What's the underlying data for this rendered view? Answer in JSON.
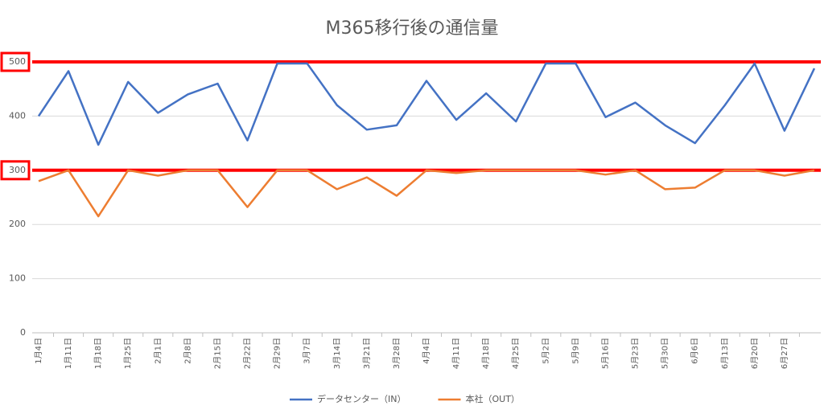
{
  "chart_data": {
    "type": "line",
    "title": "M365移行後の通信量",
    "categories": [
      "1月4日",
      "1月11日",
      "1月18日",
      "1月25日",
      "2月1日",
      "2月8日",
      "2月15日",
      "2月22日",
      "2月29日",
      "3月7日",
      "3月14日",
      "3月21日",
      "3月28日",
      "4月4日",
      "4月11日",
      "4月18日",
      "4月25日",
      "5月2日",
      "5月9日",
      "5月16日",
      "5月23日",
      "5月30日",
      "6月6日",
      "6月13日",
      "6月20日",
      "6月27日",
      null
    ],
    "series": [
      {
        "name": "データセンター（IN）",
        "color": "#4472c4",
        "values": [
          400,
          483,
          347,
          463,
          406,
          440,
          460,
          355,
          497,
          497,
          420,
          375,
          383,
          465,
          393,
          442,
          390,
          497,
          497,
          398,
          425,
          383,
          350,
          420,
          497,
          373,
          488
        ]
      },
      {
        "name": "本社（OUT）",
        "color": "#ed7d31",
        "values": [
          280,
          300,
          215,
          300,
          290,
          300,
          300,
          232,
          300,
          300,
          265,
          287,
          253,
          300,
          295,
          300,
          300,
          300,
          300,
          292,
          300,
          265,
          268,
          300,
          300,
          290,
          300
        ]
      }
    ],
    "ylim": [
      0,
      500
    ],
    "yticks": [
      0,
      100,
      200,
      300,
      400,
      500
    ],
    "grid": true,
    "reference_lines": [
      500,
      300
    ],
    "reference_color": "#ff0000",
    "legend": "bottom"
  }
}
